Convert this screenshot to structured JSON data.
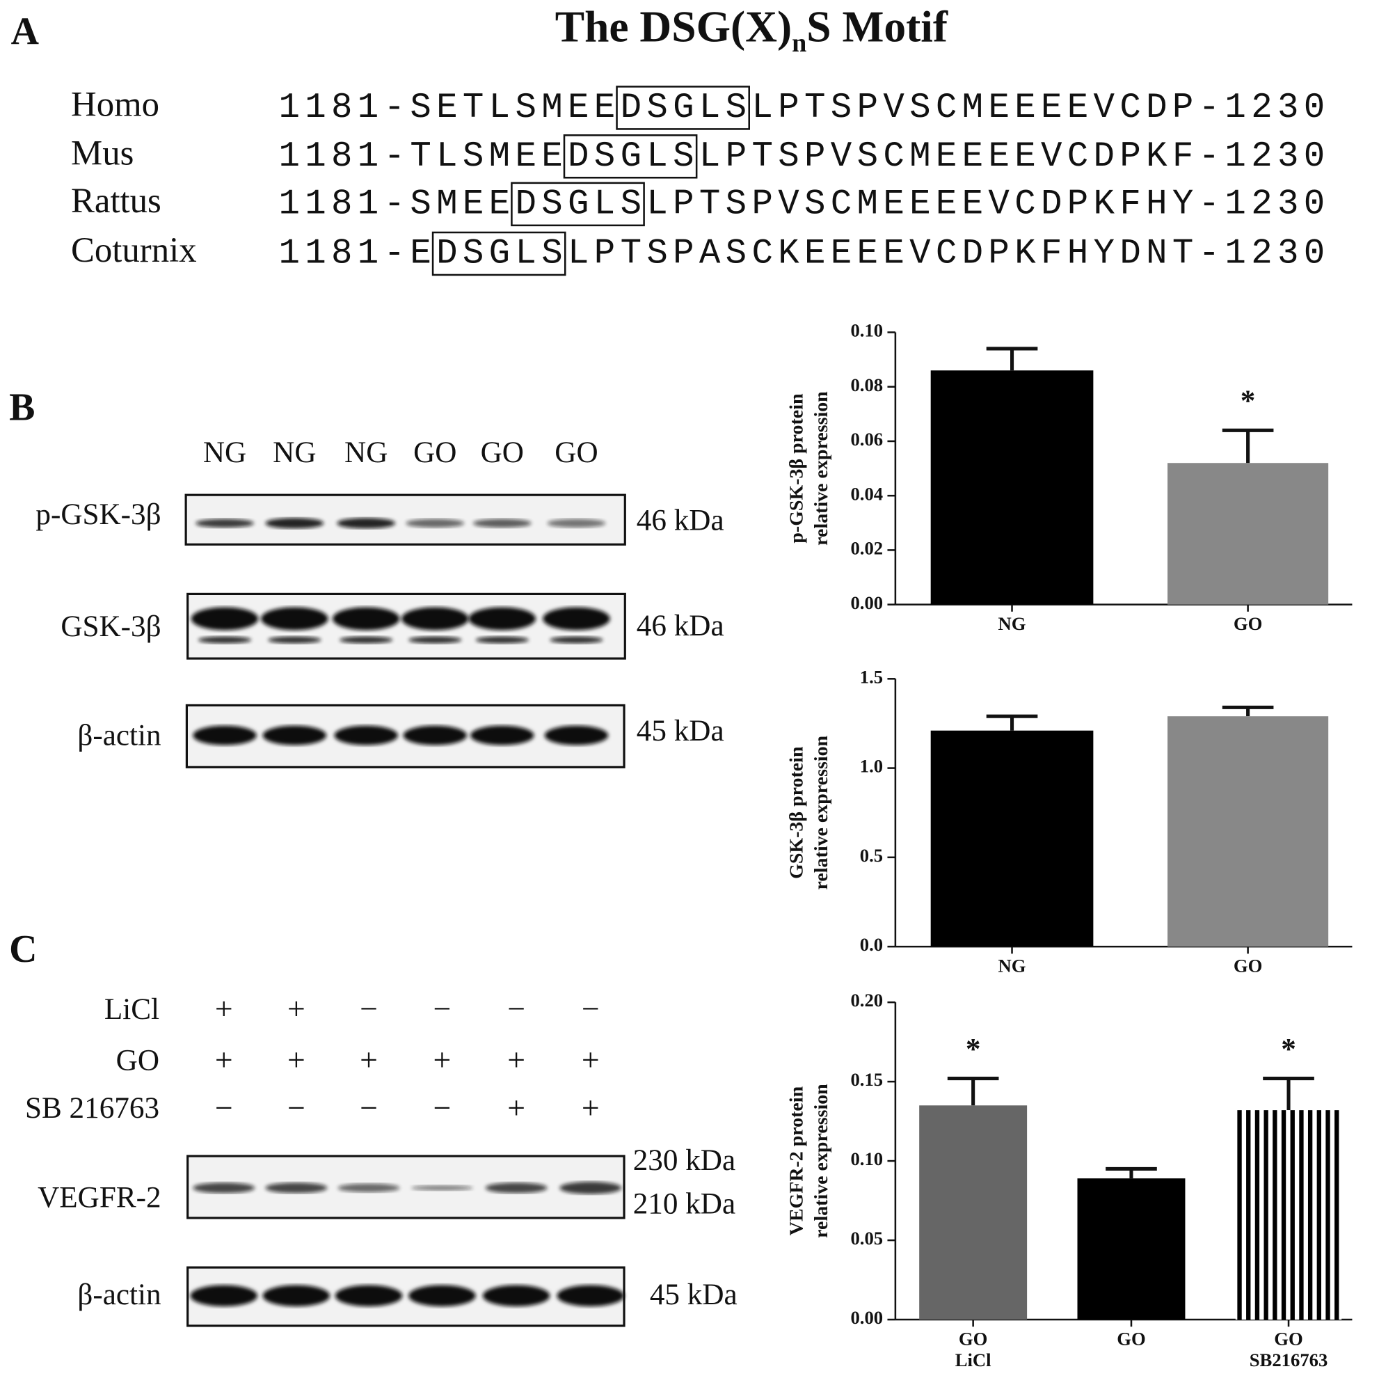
{
  "panel_a": {
    "label": "A",
    "title": {
      "text": "The DSG(X)",
      "subscript": "n",
      "tail": "S Motif"
    },
    "sequences": [
      {
        "species": "Homo",
        "prefix": "1181-SETLSMEE",
        "motif": "DSGLS",
        "suffix": "LPTSPVSCMEEEEVCDP-1230"
      },
      {
        "species": "Mus",
        "prefix": "1181-TLSMEE",
        "motif": "DSGLS",
        "suffix": "LPTSPVSCMEEEEVCDPKF-1230"
      },
      {
        "species": "Rattus",
        "prefix": "1181-SMEE",
        "motif": "DSGLS",
        "suffix": "LPTSPVSCMEEEEVCDPKFHY-1230"
      },
      {
        "species": "Coturnix",
        "prefix": "1181-E",
        "motif": "DSGLS",
        "suffix": "LPTSPASCKEEEEVCDPKFHYDNT-1230"
      }
    ]
  },
  "panel_b": {
    "label": "B",
    "lanes": [
      "NG",
      "NG",
      "NG",
      "GO",
      "GO",
      "GO"
    ],
    "blots": [
      {
        "protein": "p-GSK-3β",
        "size": "46 kDa"
      },
      {
        "protein": "GSK-3β",
        "size": "46 kDa"
      },
      {
        "protein": "β-actin",
        "size": "45 kDa"
      }
    ]
  },
  "panel_c": {
    "label": "C",
    "treatments": [
      {
        "name": "LiCl",
        "signs": [
          "+",
          "+",
          "−",
          "−",
          "−",
          "−"
        ]
      },
      {
        "name": "GO",
        "signs": [
          "+",
          "+",
          "+",
          "+",
          "+",
          "+"
        ]
      },
      {
        "name": "SB 216763",
        "signs": [
          "−",
          "−",
          "−",
          "−",
          "+",
          "+"
        ]
      }
    ],
    "blots": [
      {
        "protein": "VEGFR-2",
        "sizes": [
          "230 kDa",
          "210 kDa"
        ]
      },
      {
        "protein": "β-actin",
        "sizes": [
          "45 kDa"
        ]
      }
    ]
  },
  "chart_data": [
    {
      "type": "bar",
      "y_label": [
        "p-GSK-3β protein",
        "relative expression"
      ],
      "categories": [
        [
          "NG"
        ],
        [
          "GO"
        ]
      ],
      "values": [
        0.086,
        0.052
      ],
      "errors": [
        0.008,
        0.012
      ],
      "colors": [
        "#000000",
        "#888888"
      ],
      "patterns": [
        null,
        null
      ],
      "significance": [
        null,
        "*"
      ],
      "ylim": [
        0,
        0.1
      ],
      "yticks": [
        {
          "value": 0,
          "label": "0.00"
        },
        {
          "value": 0.02,
          "label": "0.02"
        },
        {
          "value": 0.04,
          "label": "0.04"
        },
        {
          "value": 0.06,
          "label": "0.06"
        },
        {
          "value": 0.08,
          "label": "0.08"
        },
        {
          "value": 0.1,
          "label": "0.10"
        }
      ]
    },
    {
      "type": "bar",
      "y_label": [
        "GSK-3β protein",
        "relative expression"
      ],
      "categories": [
        [
          "NG"
        ],
        [
          "GO"
        ]
      ],
      "values": [
        1.21,
        1.29
      ],
      "errors": [
        0.08,
        0.05
      ],
      "colors": [
        "#000000",
        "#888888"
      ],
      "patterns": [
        null,
        null
      ],
      "significance": [
        null,
        null
      ],
      "ylim": [
        0,
        1.5
      ],
      "yticks": [
        {
          "value": 0,
          "label": "0.0"
        },
        0.5,
        {
          "value": 1,
          "label": "1.0"
        },
        1.5
      ]
    },
    {
      "type": "bar",
      "y_label": [
        "VEGFR-2 protein",
        "relative expression"
      ],
      "categories": [
        [
          "GO",
          "LiCl"
        ],
        [
          "GO"
        ],
        [
          "GO",
          "SB216763"
        ]
      ],
      "values": [
        0.135,
        0.089,
        0.132
      ],
      "errors": [
        0.017,
        0.006,
        0.02
      ],
      "colors": [
        "#666666",
        "#000000",
        "#000000"
      ],
      "patterns": [
        null,
        null,
        "vertical-stripes"
      ],
      "significance": [
        "*",
        null,
        "*"
      ],
      "ylim": [
        0,
        0.2
      ],
      "yticks": [
        {
          "value": 0,
          "label": "0.00"
        },
        {
          "value": 0.05,
          "label": "0.05"
        },
        {
          "value": 0.1,
          "label": "0.10"
        },
        {
          "value": 0.15,
          "label": "0.15"
        },
        {
          "value": 0.2,
          "label": "0.20"
        }
      ]
    }
  ]
}
